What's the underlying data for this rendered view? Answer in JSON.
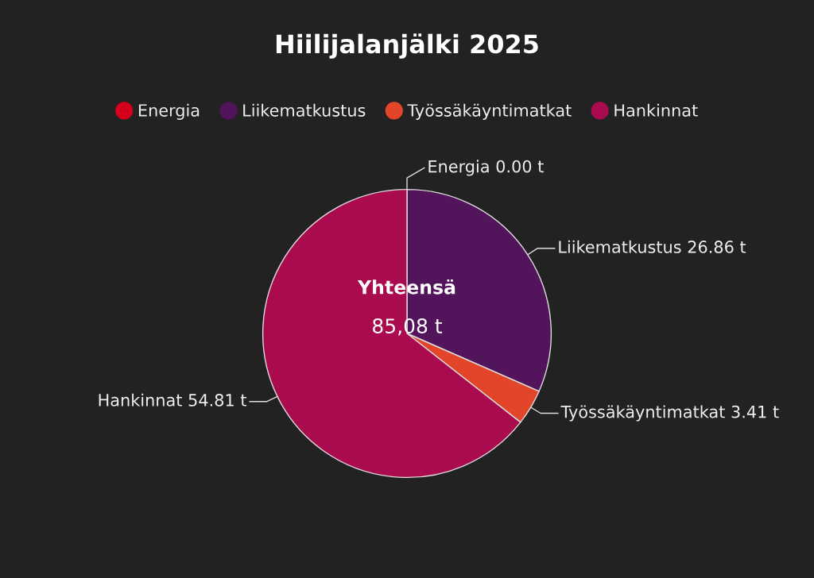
{
  "chart_data": {
    "type": "pie",
    "title": "Hiilijalanjälki 2025",
    "categories": [
      "Energia",
      "Liikematkustus",
      "Työssäkäyntimatkat",
      "Hankinnat"
    ],
    "values": [
      0.0,
      26.86,
      3.41,
      54.81
    ],
    "colors": [
      "#d5001c",
      "#52145a",
      "#e3452b",
      "#a90b4e"
    ],
    "value_labels": [
      "0.00 t",
      "26.86 t",
      "3.41 t",
      "54.81 t"
    ],
    "legend": "top",
    "annotations": [
      "Yhteensä",
      "85,08 t"
    ]
  }
}
